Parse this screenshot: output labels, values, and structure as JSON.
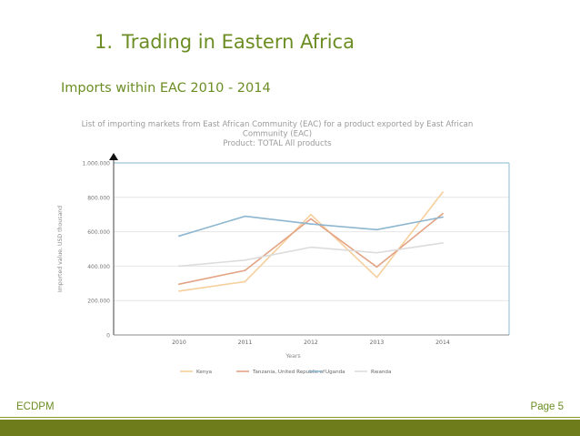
{
  "slide": {
    "number": "1.",
    "title": "Trading in Eastern Africa",
    "subtitle": "Imports within EAC 2010 - 2014",
    "footer_left": "ECDPM",
    "footer_right": "Page 5"
  },
  "colors": {
    "accent": "#6b8d23",
    "footer_bar": "#6e7c1b",
    "plot_border": "#9fc4da"
  },
  "chart_data": {
    "type": "line",
    "title_lines": [
      "List of importing markets from East African Community (EAC) for a product exported by East African",
      "Community (EAC)",
      "Product: TOTAL All products"
    ],
    "xlabel": "Years",
    "ylabel": "Imported value, USD thousand",
    "x": [
      "2010",
      "2011",
      "2012",
      "2013",
      "2014"
    ],
    "ylim": [
      0,
      1000000
    ],
    "yticks": [
      0,
      200000,
      400000,
      600000,
      800000,
      1000000
    ],
    "ytick_labels": [
      "0",
      "200.000",
      "400.000",
      "600.000",
      "800.000",
      "1.000.000"
    ],
    "grid": true,
    "legend_position": "bottom",
    "series": [
      {
        "name": "Kenya",
        "color": "#f6cf9c",
        "values": [
          255000,
          310000,
          700000,
          335000,
          830000
        ]
      },
      {
        "name": "Tanzania, United Republic of",
        "color": "#e3a385",
        "values": [
          295000,
          375000,
          675000,
          395000,
          705000
        ]
      },
      {
        "name": "Uganda",
        "color": "#8db6cf",
        "values": [
          575000,
          690000,
          645000,
          612000,
          685000
        ]
      },
      {
        "name": "Rwanda",
        "color": "#dcdcdc",
        "values": [
          400000,
          435000,
          510000,
          478000,
          535000
        ]
      }
    ]
  }
}
